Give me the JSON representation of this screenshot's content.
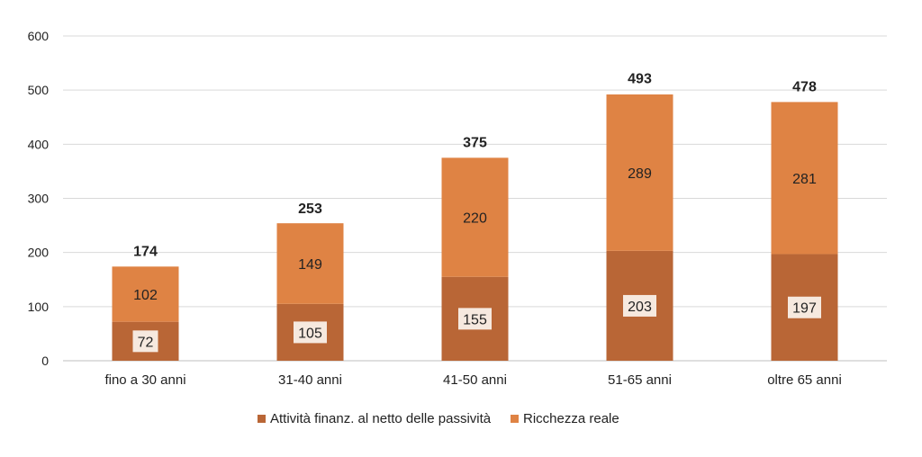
{
  "chart_data": {
    "type": "bar",
    "stacked": true,
    "categories": [
      "fino a 30 anni",
      "31-40 anni",
      "41-50 anni",
      "51-65 anni",
      "oltre 65 anni"
    ],
    "series": [
      {
        "name": "Attività finanz. al netto delle passività",
        "values": [
          72,
          105,
          155,
          203,
          197
        ],
        "color": "#b96636"
      },
      {
        "name": "Ricchezza reale",
        "values": [
          102,
          149,
          220,
          289,
          281
        ],
        "color": "#df8344"
      }
    ],
    "totals": [
      174,
      253,
      375,
      493,
      478
    ],
    "ylim": [
      0,
      600
    ],
    "yticks": [
      0,
      100,
      200,
      300,
      400,
      500,
      600
    ],
    "grid": true,
    "legend": "bottom",
    "title": "",
    "xlabel": "",
    "ylabel": ""
  }
}
